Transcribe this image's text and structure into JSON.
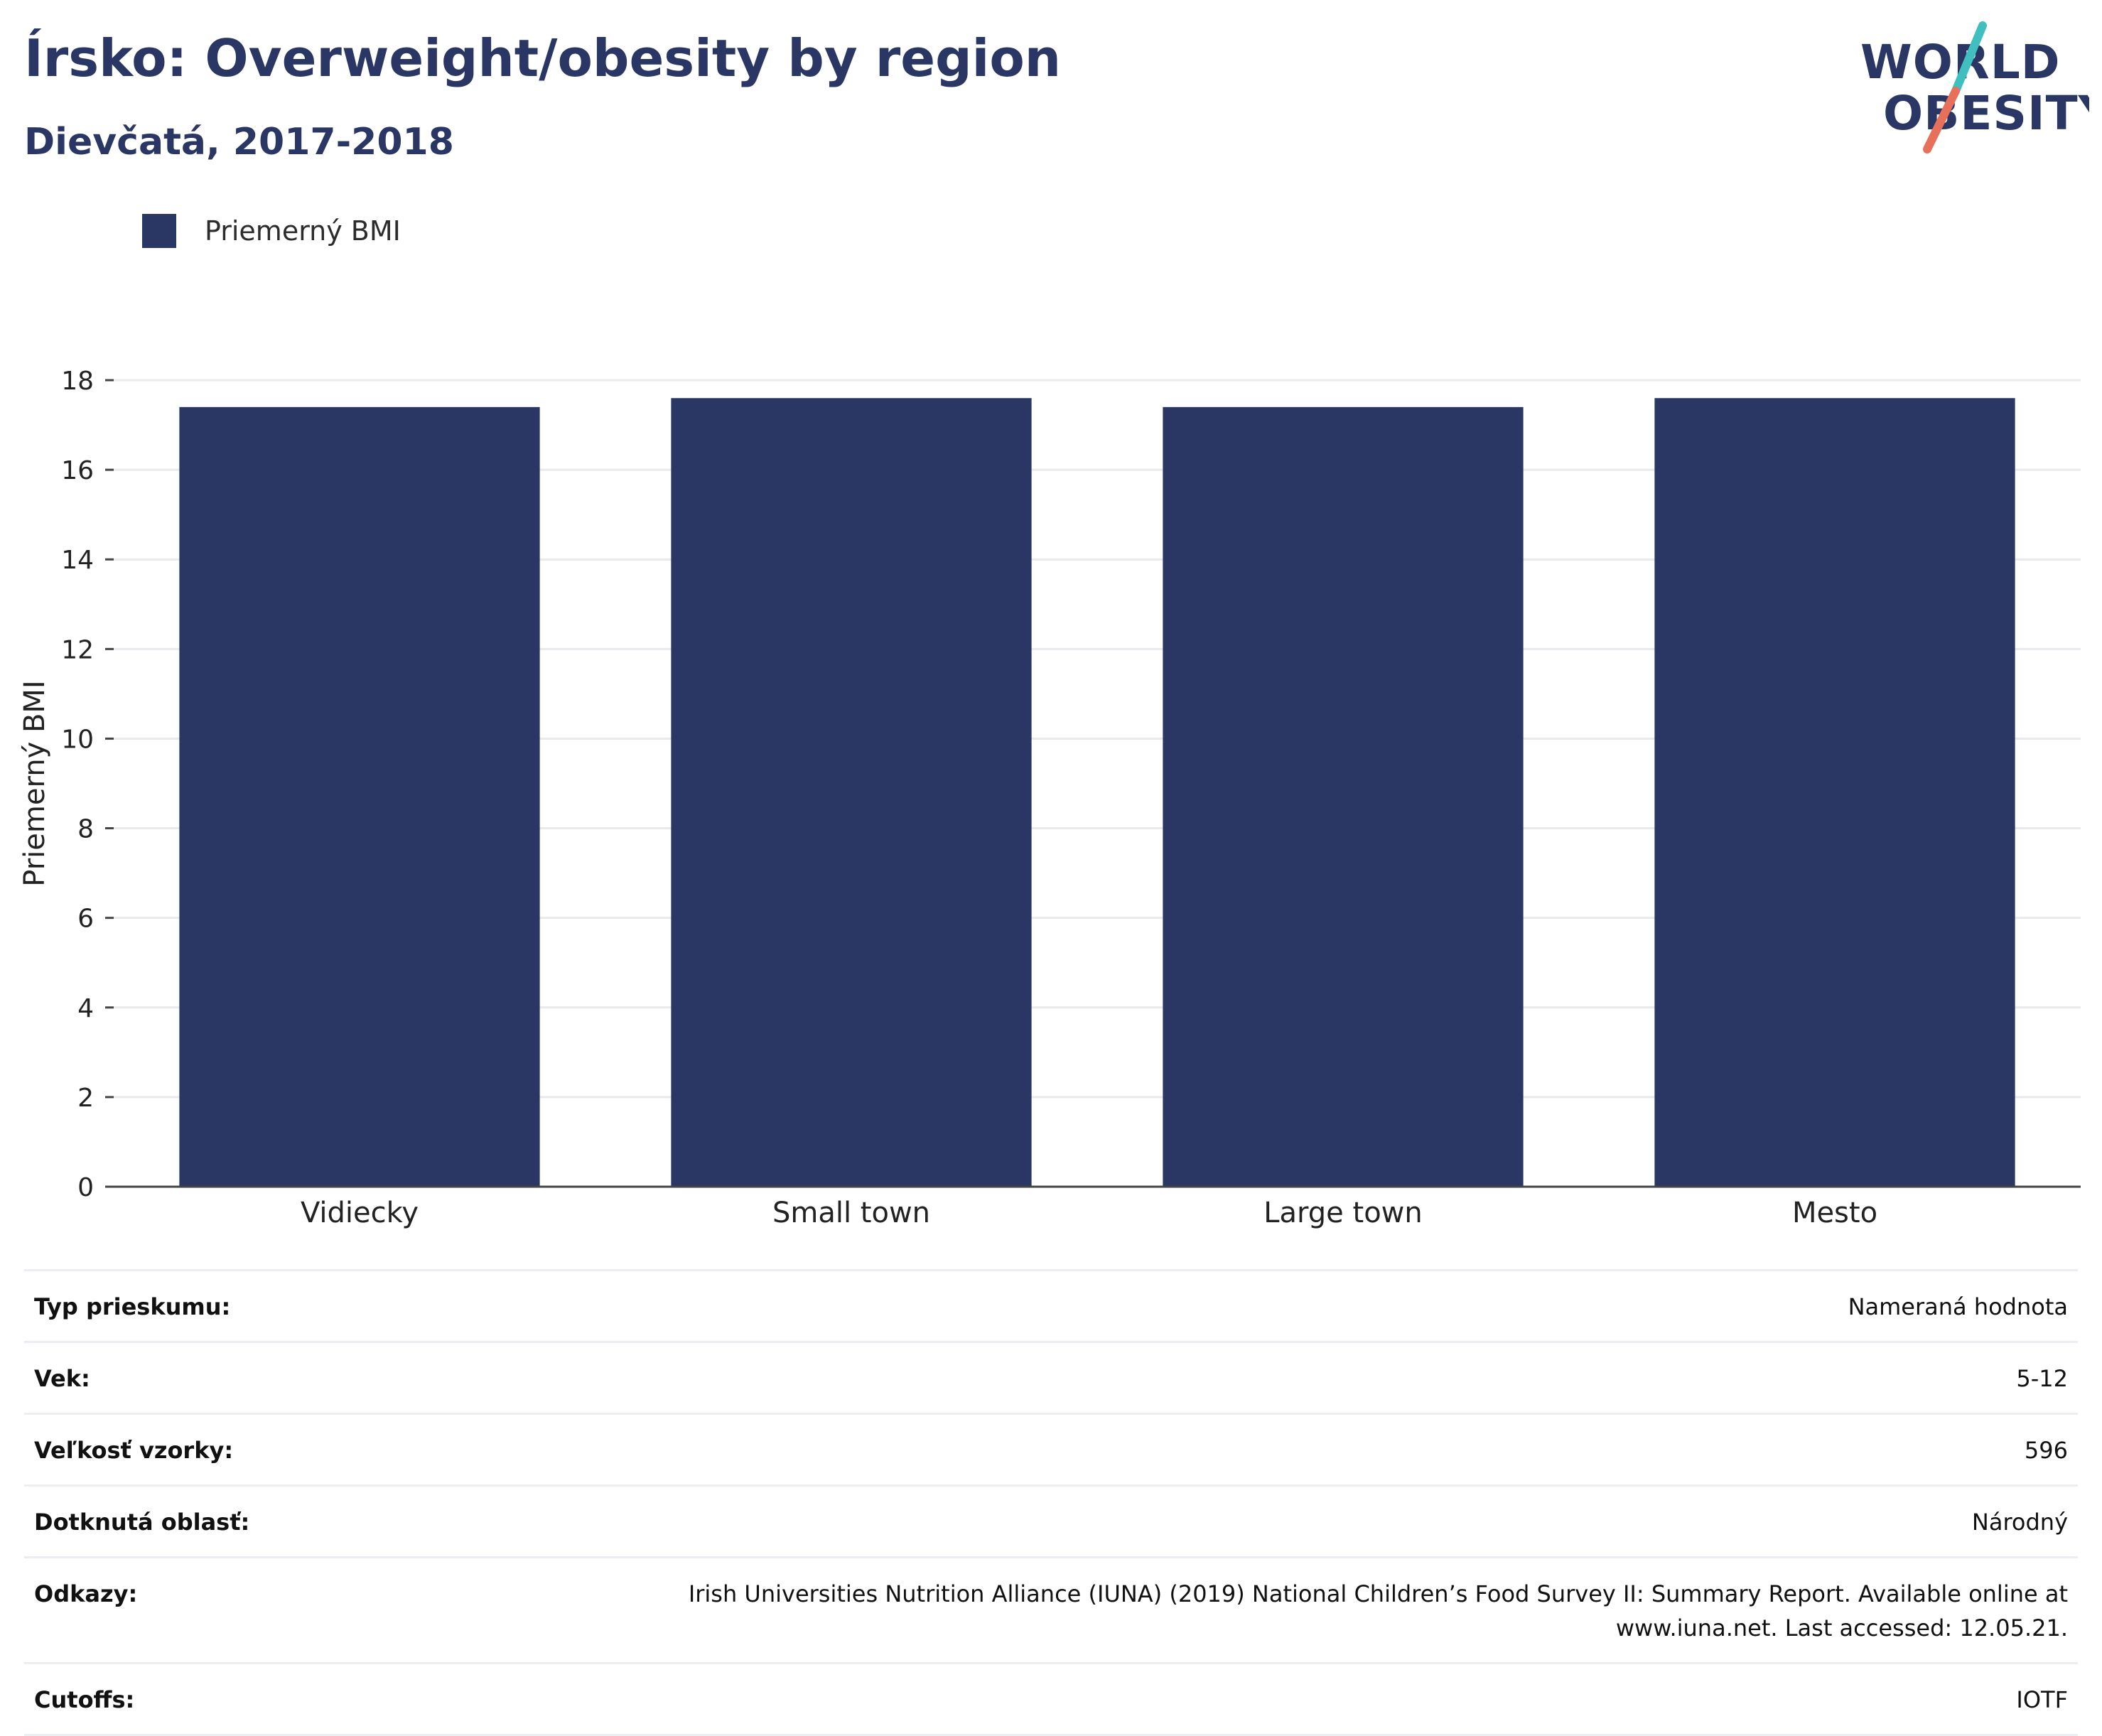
{
  "header": {
    "title": "Írsko: Overweight/obesity by region",
    "subtitle": "Dievčatá, 2017-2018"
  },
  "logo": {
    "line1": "WORLD",
    "line2": "OBESITY",
    "colors": {
      "text": "#2a3764",
      "slash_top": "#3fbfbf",
      "slash_bottom": "#e8705a"
    }
  },
  "legend": {
    "label": "Priemerný BMI",
    "color": "#2a3764"
  },
  "chart_data": {
    "type": "bar",
    "categories": [
      "Vidiecky",
      "Small town",
      "Large town",
      "Mesto"
    ],
    "series": [
      {
        "name": "Priemerný BMI",
        "values": [
          17.4,
          17.6,
          17.4,
          17.6
        ],
        "color": "#2a3764"
      }
    ],
    "ylabel": "Priemerný BMI",
    "xlabel": "",
    "ylim": [
      0,
      18
    ],
    "yticks": [
      0,
      2,
      4,
      6,
      8,
      10,
      12,
      14,
      16,
      18
    ],
    "grid": true,
    "legend_position": "top-left"
  },
  "info": [
    {
      "key": "Typ prieskumu:",
      "value": "Nameraná hodnota"
    },
    {
      "key": "Vek:",
      "value": "5-12"
    },
    {
      "key": "Veľkosť vzorky:",
      "value": "596"
    },
    {
      "key": "Dotknutá oblasť:",
      "value": "Národný"
    },
    {
      "key": "Odkazy:",
      "value": "Irish Universities Nutrition Alliance (IUNA) (2019) National Children’s Food Survey II: Summary Report. Available online at www.iuna.net. Last accessed: 12.05.21."
    },
    {
      "key": "Cutoffs:",
      "value": "IOTF"
    }
  ]
}
